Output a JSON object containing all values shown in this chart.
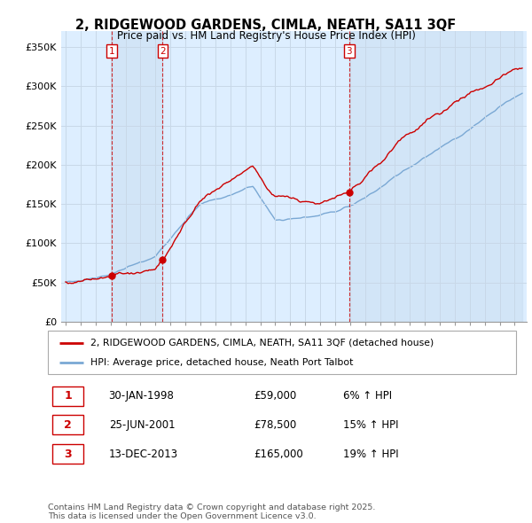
{
  "title": "2, RIDGEWOOD GARDENS, CIMLA, NEATH, SA11 3QF",
  "subtitle": "Price paid vs. HM Land Registry's House Price Index (HPI)",
  "ylim": [
    0,
    370000
  ],
  "yticks": [
    0,
    50000,
    100000,
    150000,
    200000,
    250000,
    300000,
    350000
  ],
  "ytick_labels": [
    "£0",
    "£50K",
    "£100K",
    "£150K",
    "£200K",
    "£250K",
    "£300K",
    "£350K"
  ],
  "sale_dates": [
    1998.08,
    2001.48,
    2013.95
  ],
  "sale_prices": [
    59000,
    78500,
    165000
  ],
  "sale_labels": [
    "1",
    "2",
    "3"
  ],
  "vline_color": "#cc0000",
  "hpi_color": "#7aa8d4",
  "price_color": "#cc0000",
  "dot_color": "#cc0000",
  "chart_bg": "#ddeeff",
  "legend_entries": [
    "2, RIDGEWOOD GARDENS, CIMLA, NEATH, SA11 3QF (detached house)",
    "HPI: Average price, detached house, Neath Port Talbot"
  ],
  "table_rows": [
    [
      "1",
      "30-JAN-1998",
      "£59,000",
      "6% ↑ HPI"
    ],
    [
      "2",
      "25-JUN-2001",
      "£78,500",
      "15% ↑ HPI"
    ],
    [
      "3",
      "13-DEC-2013",
      "£165,000",
      "19% ↑ HPI"
    ]
  ],
  "footer": "Contains HM Land Registry data © Crown copyright and database right 2025.\nThis data is licensed under the Open Government Licence v3.0.",
  "grid_color": "#c8d8e8"
}
